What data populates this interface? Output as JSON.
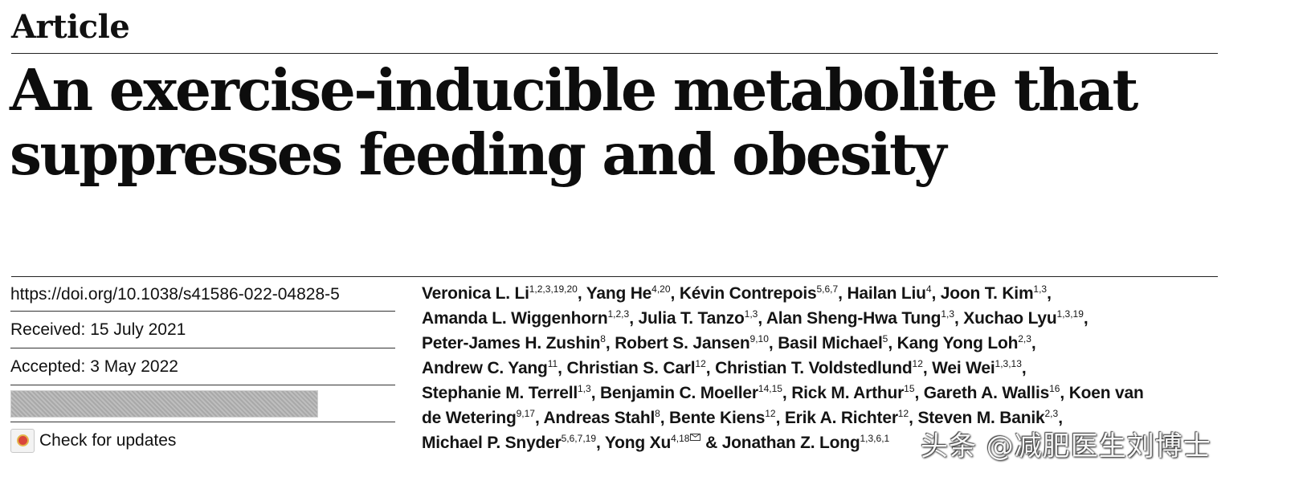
{
  "header": {
    "article_type": "Article",
    "title_line1": "An exercise-inducible metabolite that",
    "title_line2": "suppresses feeding and obesity"
  },
  "meta": {
    "doi": "https://doi.org/10.1038/s41586-022-04828-5",
    "received": "Received: 15 July 2021",
    "accepted": "Accepted: 3 May 2022",
    "check_updates": "Check for updates"
  },
  "authors": [
    [
      {
        "name": "Veronica L. Li",
        "aff": "1,2,3,19,20",
        "sep": ", "
      },
      {
        "name": "Yang He",
        "aff": "4,20",
        "sep": ", "
      },
      {
        "name": "Kévin Contrepois",
        "aff": "5,6,7",
        "sep": ", "
      },
      {
        "name": "Hailan Liu",
        "aff": "4",
        "sep": ", "
      },
      {
        "name": "Joon T. Kim",
        "aff": "1,3",
        "sep": ","
      }
    ],
    [
      {
        "name": "Amanda L. Wiggenhorn",
        "aff": "1,2,3",
        "sep": ", "
      },
      {
        "name": "Julia T. Tanzo",
        "aff": "1,3",
        "sep": ", "
      },
      {
        "name": "Alan Sheng-Hwa Tung",
        "aff": "1,3",
        "sep": ", "
      },
      {
        "name": "Xuchao Lyu",
        "aff": "1,3,19",
        "sep": ","
      }
    ],
    [
      {
        "name": "Peter-James H. Zushin",
        "aff": "8",
        "sep": ", "
      },
      {
        "name": "Robert S. Jansen",
        "aff": "9,10",
        "sep": ", "
      },
      {
        "name": "Basil Michael",
        "aff": "5",
        "sep": ", "
      },
      {
        "name": "Kang Yong Loh",
        "aff": "2,3",
        "sep": ","
      }
    ],
    [
      {
        "name": "Andrew C. Yang",
        "aff": "11",
        "sep": ", "
      },
      {
        "name": "Christian S. Carl",
        "aff": "12",
        "sep": ", "
      },
      {
        "name": "Christian T. Voldstedlund",
        "aff": "12",
        "sep": ", "
      },
      {
        "name": "Wei Wei",
        "aff": "1,3,13",
        "sep": ","
      }
    ],
    [
      {
        "name": "Stephanie M. Terrell",
        "aff": "1,3",
        "sep": ", "
      },
      {
        "name": "Benjamin C. Moeller",
        "aff": "14,15",
        "sep": ", "
      },
      {
        "name": "Rick M. Arthur",
        "aff": "15",
        "sep": ", "
      },
      {
        "name": "Gareth A. Wallis",
        "aff": "16",
        "sep": ", "
      },
      {
        "name": "Koen van",
        "aff": "",
        "sep": ""
      }
    ],
    [
      {
        "name": "de Wetering",
        "aff": "9,17",
        "sep": ", "
      },
      {
        "name": "Andreas Stahl",
        "aff": "8",
        "sep": ", "
      },
      {
        "name": "Bente Kiens",
        "aff": "12",
        "sep": ", "
      },
      {
        "name": "Erik A. Richter",
        "aff": "12",
        "sep": ", "
      },
      {
        "name": "Steven M. Banik",
        "aff": "2,3",
        "sep": ","
      }
    ],
    [
      {
        "name": "Michael P. Snyder",
        "aff": "5,6,7,19",
        "sep": ", "
      },
      {
        "name": "Yong Xu",
        "aff": "4,18",
        "mail": true,
        "sep": " & "
      },
      {
        "name": "Jonathan Z. Long",
        "aff": "1,3,6,1",
        "sep": ""
      }
    ]
  ],
  "watermark": "头条 @减肥医生刘博士"
}
